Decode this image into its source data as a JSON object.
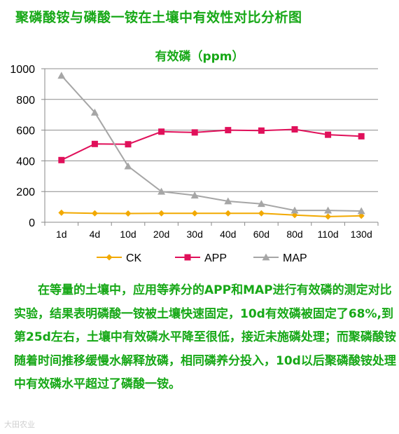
{
  "page_title": "聚磷酸铵与磷酸一铵在土壤中有效性对比分析图",
  "chart_data": {
    "type": "line",
    "title": "有效磷（ppm）",
    "categories": [
      "1d",
      "4d",
      "10d",
      "20d",
      "30d",
      "40d",
      "60d",
      "80d",
      "110d",
      "130d"
    ],
    "ylim": [
      0,
      1000
    ],
    "yticks": [
      0,
      200,
      400,
      600,
      800,
      1000
    ],
    "grid": true,
    "legend_position": "bottom",
    "series": [
      {
        "name": "CK",
        "color": "#f2a900",
        "marker": "diamond",
        "values": [
          62,
          58,
          57,
          58,
          58,
          58,
          58,
          47,
          37,
          42
        ]
      },
      {
        "name": "APP",
        "color": "#e0105a",
        "marker": "square",
        "values": [
          405,
          510,
          508,
          590,
          585,
          600,
          597,
          605,
          570,
          560
        ]
      },
      {
        "name": "MAP",
        "color": "#a6a6a6",
        "marker": "triangle",
        "values": [
          955,
          715,
          365,
          200,
          175,
          137,
          120,
          77,
          77,
          73
        ]
      }
    ]
  },
  "paragraph": "在等量的土壤中，应用等养分的APP和MAP进行有效磷的测定对比实验，结果表明磷酸一铵被土壤快速固定，10d有效磷被固定了68%,到第25d左右，土壤中有效磷水平降至很低，接近未施磷处理；而聚磷酸铵随着时间推移缓慢水解释放磷，相同磷养分投入，10d以后聚磷酸铵处理中有效磷水平超过了磷酸一铵。",
  "watermark": "大田农业"
}
